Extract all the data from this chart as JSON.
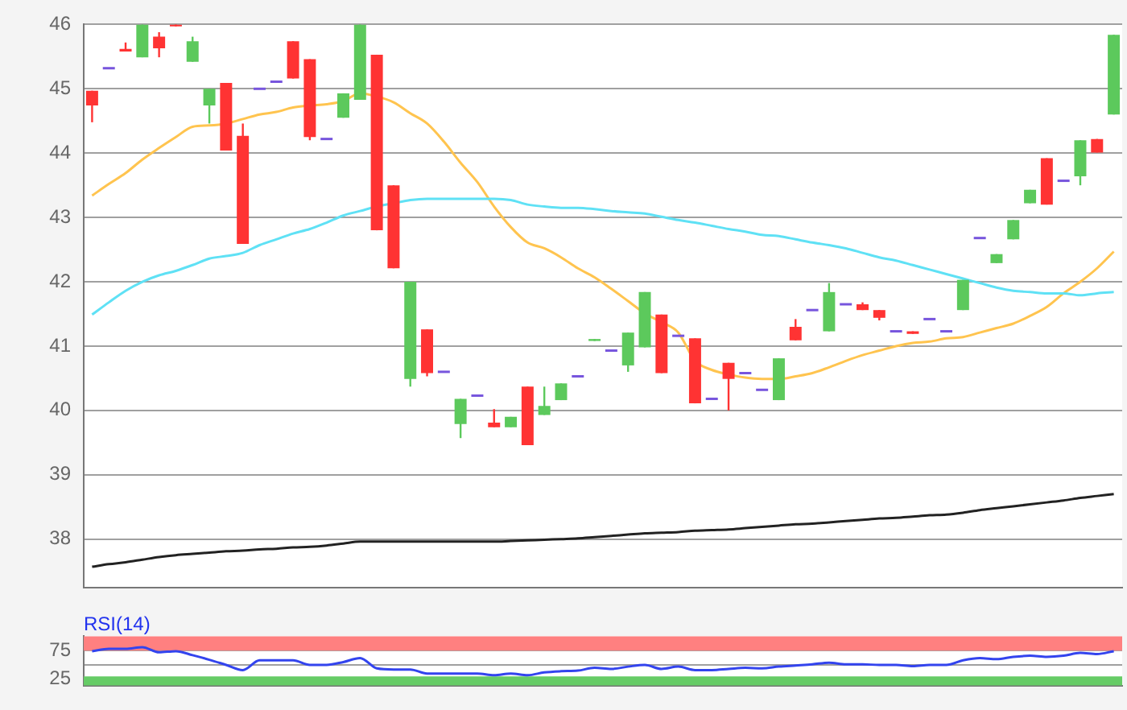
{
  "chart_data": [
    {
      "type": "candlestick",
      "categories": [
        null,
        null,
        null,
        null,
        null,
        null,
        null,
        null,
        null,
        null,
        null,
        null,
        null,
        null,
        null,
        null,
        null,
        null,
        null,
        null,
        null,
        null,
        null,
        null,
        null,
        null,
        null,
        null,
        null,
        null,
        null,
        null,
        null,
        null,
        null,
        null,
        null,
        null,
        null,
        null,
        null,
        null,
        null,
        null,
        null,
        null,
        null,
        null,
        null,
        null,
        null,
        null,
        null,
        null,
        null,
        null,
        null,
        null,
        null,
        null,
        null,
        null
      ],
      "ylim": [
        37.25,
        46
      ],
      "yticks": [
        38,
        39,
        40,
        41,
        42,
        43,
        44,
        45,
        46
      ],
      "grid": "y",
      "legend": false,
      "tick_labels": "y",
      "marker": "none",
      "series": [
        {
          "type": "line",
          "color": "#222222",
          "values": [
            37.57,
            37.61,
            37.64,
            37.68,
            37.72,
            37.75,
            37.77,
            37.79,
            37.81,
            37.82,
            37.84,
            37.85,
            37.87,
            37.88,
            37.9,
            37.93,
            37.96,
            37.96,
            37.96,
            37.96,
            37.96,
            37.96,
            37.96,
            37.96,
            37.96,
            37.97,
            37.98,
            37.99,
            38,
            38.01,
            38.03,
            38.05,
            38.07,
            38.09,
            38.1,
            38.11,
            38.13,
            38.14,
            38.15,
            38.17,
            38.19,
            38.21,
            38.23,
            38.24,
            38.26,
            38.28,
            38.3,
            38.32,
            38.33,
            38.35,
            38.37,
            38.38,
            38.41,
            38.45,
            38.48,
            38.51,
            38.54,
            38.57,
            38.6,
            38.64,
            38.67,
            38.7
          ]
        },
        {
          "type": "line",
          "color": "#5fe1f5",
          "values": [
            41.49,
            41.68,
            41.86,
            42,
            42.1,
            42.17,
            42.26,
            42.36,
            42.4,
            42.45,
            42.57,
            42.66,
            42.75,
            42.82,
            42.92,
            43.03,
            43.1,
            43.17,
            43.22,
            43.27,
            43.29,
            43.29,
            43.29,
            43.29,
            43.29,
            43.27,
            43.2,
            43.17,
            43.15,
            43.15,
            43.13,
            43.1,
            43.08,
            43.06,
            43.01,
            42.96,
            42.92,
            42.87,
            42.82,
            42.78,
            42.73,
            42.71,
            42.66,
            42.61,
            42.57,
            42.52,
            42.45,
            42.38,
            42.33,
            42.26,
            42.19,
            42.12,
            42.05,
            41.98,
            41.91,
            41.86,
            41.84,
            41.82,
            41.82,
            41.79,
            41.82,
            41.84
          ]
        },
        {
          "type": "line",
          "color": "#ffc44f",
          "values": [
            43.34,
            43.52,
            43.69,
            43.9,
            44.08,
            44.25,
            44.41,
            44.43,
            44.46,
            44.53,
            44.6,
            44.64,
            44.71,
            44.74,
            44.76,
            44.81,
            44.93,
            44.88,
            44.79,
            44.62,
            44.46,
            44.18,
            43.85,
            43.55,
            43.17,
            42.85,
            42.61,
            42.52,
            42.38,
            42.21,
            42.07,
            41.89,
            41.7,
            41.51,
            41.37,
            41.21,
            40.77,
            40.63,
            40.56,
            40.51,
            40.49,
            40.49,
            40.53,
            40.58,
            40.67,
            40.77,
            40.86,
            40.93,
            41,
            41.05,
            41.07,
            41.12,
            41.14,
            41.21,
            41.28,
            41.35,
            41.47,
            41.61,
            41.82,
            42,
            42.21,
            42.47
          ]
        },
        {
          "type": "candlestick",
          "ohlc": [
            [
              44.97,
              44.97,
              44.48,
              44.74
            ],
            [
              45.32,
              45.32,
              45.32,
              45.32
            ],
            [
              45.62,
              45.72,
              45.58,
              45.58
            ],
            [
              45.49,
              46,
              45.49,
              46
            ],
            [
              45.81,
              45.88,
              45.49,
              45.63
            ],
            [
              46,
              46,
              45.97,
              45.97
            ],
            [
              45.42,
              45.81,
              45.42,
              45.74
            ],
            [
              44.74,
              45,
              44.46,
              45
            ],
            [
              45.09,
              45.09,
              44.04,
              44.04
            ],
            [
              44.27,
              44.46,
              42.59,
              42.59
            ],
            [
              45,
              45,
              45,
              45
            ],
            [
              45.11,
              45.11,
              45.11,
              45.11
            ],
            [
              45.74,
              45.74,
              45.16,
              45.16
            ],
            [
              45.46,
              45.46,
              44.2,
              44.25
            ],
            [
              44.22,
              44.22,
              44.22,
              44.22
            ],
            [
              44.55,
              44.93,
              44.55,
              44.93
            ],
            [
              44.83,
              46,
              44.83,
              46
            ],
            [
              45.53,
              45.53,
              42.8,
              42.8
            ],
            [
              43.5,
              43.5,
              42.21,
              42.21
            ],
            [
              40.49,
              42,
              40.37,
              42
            ],
            [
              41.26,
              41.26,
              40.53,
              40.58
            ],
            [
              40.6,
              40.6,
              40.6,
              40.6
            ],
            [
              39.79,
              40.18,
              39.57,
              40.18
            ],
            [
              40.23,
              40.23,
              40.23,
              40.23
            ],
            [
              39.81,
              40.02,
              39.74,
              39.74
            ],
            [
              39.74,
              39.9,
              39.74,
              39.9
            ],
            [
              40.37,
              40.37,
              39.46,
              39.46
            ],
            [
              39.93,
              40.37,
              39.93,
              40.07
            ],
            [
              40.16,
              40.42,
              40.16,
              40.42
            ],
            [
              40.53,
              40.53,
              40.53,
              40.53
            ],
            [
              41.08,
              41.11,
              41.08,
              41.11
            ],
            [
              40.93,
              40.93,
              40.93,
              40.93
            ],
            [
              40.7,
              41.21,
              40.6,
              41.21
            ],
            [
              40.98,
              41.84,
              40.98,
              41.84
            ],
            [
              41.49,
              41.49,
              40.58,
              40.58
            ],
            [
              41.16,
              41.16,
              41.16,
              41.16
            ],
            [
              41.12,
              41.12,
              40.11,
              40.11
            ],
            [
              40.18,
              40.18,
              40.18,
              40.18
            ],
            [
              40.74,
              40.74,
              40,
              40.49
            ],
            [
              40.58,
              40.58,
              40.58,
              40.58
            ],
            [
              40.32,
              40.32,
              40.32,
              40.32
            ],
            [
              40.16,
              40.81,
              40.16,
              40.81
            ],
            [
              41.3,
              41.42,
              41.09,
              41.09
            ],
            [
              41.56,
              41.56,
              41.56,
              41.56
            ],
            [
              41.23,
              41.98,
              41.23,
              41.84
            ],
            [
              41.65,
              41.65,
              41.65,
              41.65
            ],
            [
              41.65,
              41.68,
              41.56,
              41.56
            ],
            [
              41.56,
              41.56,
              41.4,
              41.44
            ],
            [
              41.23,
              41.23,
              41.23,
              41.23
            ],
            [
              41.23,
              41.23,
              41.19,
              41.19
            ],
            [
              41.42,
              41.42,
              41.42,
              41.42
            ],
            [
              41.23,
              41.23,
              41.23,
              41.23
            ],
            [
              41.56,
              42.03,
              41.56,
              42.03
            ],
            [
              42.68,
              42.68,
              42.68,
              42.68
            ],
            [
              42.29,
              42.43,
              42.29,
              42.43
            ],
            [
              42.66,
              42.96,
              42.66,
              42.96
            ],
            [
              43.22,
              43.43,
              43.22,
              43.43
            ],
            [
              43.92,
              43.92,
              43.2,
              43.2
            ],
            [
              43.57,
              43.57,
              43.57,
              43.57
            ],
            [
              43.64,
              44.2,
              43.5,
              44.2
            ],
            [
              44.22,
              44.22,
              44.01,
              44.01
            ],
            [
              44.6,
              45.84,
              44.6,
              45.84
            ]
          ],
          "colors": [
            "#ff3333",
            "#7755dd",
            "#ff3333",
            "#5cc95c",
            "#ff3333",
            "#ff3333",
            "#5cc95c",
            "#5cc95c",
            "#ff3333",
            "#ff3333",
            "#7755dd",
            "#7755dd",
            "#ff3333",
            "#ff3333",
            "#7755dd",
            "#5cc95c",
            "#5cc95c",
            "#ff3333",
            "#ff3333",
            "#5cc95c",
            "#ff3333",
            "#7755dd",
            "#5cc95c",
            "#7755dd",
            "#ff3333",
            "#5cc95c",
            "#ff3333",
            "#5cc95c",
            "#5cc95c",
            "#7755dd",
            "#5cc95c",
            "#7755dd",
            "#5cc95c",
            "#5cc95c",
            "#ff3333",
            "#7755dd",
            "#ff3333",
            "#7755dd",
            "#ff3333",
            "#7755dd",
            "#7755dd",
            "#5cc95c",
            "#ff3333",
            "#7755dd",
            "#5cc95c",
            "#7755dd",
            "#ff3333",
            "#ff3333",
            "#7755dd",
            "#ff3333",
            "#7755dd",
            "#7755dd",
            "#5cc95c",
            "#7755dd",
            "#5cc95c",
            "#5cc95c",
            "#5cc95c",
            "#ff3333",
            "#7755dd",
            "#5cc95c",
            "#ff3333",
            "#5cc95c"
          ]
        }
      ]
    },
    {
      "type": "line",
      "title": "RSI(14)",
      "categories": [
        null,
        null,
        null,
        null,
        null,
        null,
        null,
        null,
        null,
        null,
        null,
        null,
        null,
        null,
        null,
        null,
        null,
        null,
        null,
        null,
        null,
        null,
        null,
        null,
        null,
        null,
        null,
        null,
        null,
        null,
        null,
        null,
        null,
        null,
        null,
        null,
        null,
        null,
        null,
        null,
        null,
        null,
        null,
        null,
        null,
        null,
        null,
        null,
        null,
        null,
        null,
        null,
        null,
        null,
        null,
        null,
        null,
        null,
        null,
        null,
        null,
        null
      ],
      "ylim": [
        14,
        100
      ],
      "yticks": [
        25,
        {
          "value": 50,
          "label": null
        },
        75
      ],
      "grid": "y",
      "legend": false,
      "tick_labels": "y",
      "marker": "none",
      "bands": [
        {
          "axis": "y",
          "from": 75,
          "to": 100,
          "color": "#ff8080"
        },
        {
          "axis": "y",
          "from": 14,
          "to": 30,
          "color": "#66cc66"
        }
      ],
      "series": [
        {
          "color": "#3344ee",
          "values": [
            74,
            78,
            78,
            81,
            72,
            74,
            67,
            59,
            50,
            41,
            58,
            58,
            58,
            50,
            50,
            55,
            62,
            44,
            42,
            42,
            35,
            35,
            35,
            35,
            32,
            35,
            32,
            37,
            39,
            40,
            45,
            43,
            47,
            50,
            43,
            47,
            41,
            41,
            43,
            45,
            44,
            47,
            49,
            51,
            54,
            51,
            51,
            50,
            50,
            48,
            50,
            50,
            58,
            62,
            60,
            64,
            66,
            64,
            66,
            71,
            69,
            74
          ]
        }
      ]
    }
  ]
}
